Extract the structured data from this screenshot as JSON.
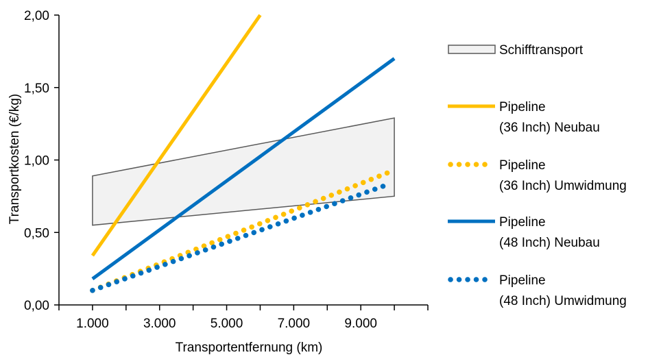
{
  "chart_data": {
    "type": "line",
    "xlabel": "Transportentfernung (km)",
    "ylabel": "Transportkosten (€/kg)",
    "xlim": [
      0,
      11000
    ],
    "ylim": [
      0,
      2.0
    ],
    "x_ticks": [
      1000,
      3000,
      5000,
      7000,
      9000
    ],
    "x_tick_labels": [
      "1.000",
      "3.000",
      "5.000",
      "7.000",
      "9.000"
    ],
    "y_ticks": [
      0,
      0.5,
      1.0,
      1.5,
      2.0
    ],
    "y_tick_labels": [
      "0,00",
      "0,50",
      "1,00",
      "1,50",
      "2,00"
    ],
    "grid": false,
    "legend_position": "right",
    "band": {
      "name": "Schifftransport",
      "color": "#f2f2f2",
      "edge_color": "#595959",
      "x": [
        1000,
        10000
      ],
      "upper": [
        0.89,
        1.29
      ],
      "lower": [
        0.55,
        0.75
      ]
    },
    "series": [
      {
        "name": "Pipeline\n(36 Inch) Neubau",
        "line1": "Pipeline",
        "line2": "(36 Inch) Neubau",
        "color": "#ffc000",
        "style": "solid",
        "x": [
          1000,
          6000
        ],
        "y": [
          0.34,
          2.0
        ]
      },
      {
        "name": "Pipeline\n(36 Inch) Umwidmung",
        "line1": "Pipeline",
        "line2": "(36 Inch) Umwidmung",
        "color": "#ffc000",
        "style": "dotted",
        "x": [
          1000,
          10000
        ],
        "y": [
          0.1,
          0.93
        ]
      },
      {
        "name": "Pipeline\n(48 Inch) Neubau",
        "line1": "Pipeline",
        "line2": "(48 Inch) Neubau",
        "color": "#0070c0",
        "style": "solid",
        "x": [
          1000,
          10000
        ],
        "y": [
          0.18,
          1.7
        ]
      },
      {
        "name": "Pipeline\n(48 Inch) Umwidmung",
        "line1": "Pipeline",
        "line2": "(48 Inch) Umwidmung",
        "color": "#0070c0",
        "style": "dotted",
        "x": [
          1000,
          9800
        ],
        "y": [
          0.1,
          0.83
        ]
      }
    ]
  }
}
